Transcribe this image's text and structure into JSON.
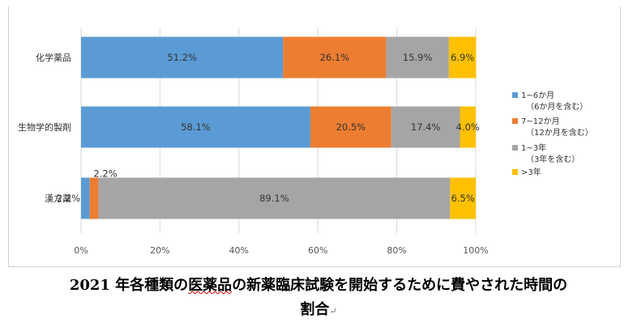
{
  "chart_data": {
    "type": "bar",
    "orientation": "horizontal",
    "stacked": "percent",
    "categories": [
      "化学薬品",
      "生物学的製剤",
      "漢方薬"
    ],
    "series": [
      {
        "name": "1~6か月",
        "name_sub": "（6か月を含む）",
        "color": "#5b9bd5",
        "values": [
          51.2,
          58.1,
          2.2
        ],
        "labels": [
          "51.2%",
          "58.1%",
          "2.2%"
        ]
      },
      {
        "name": "7~12か月",
        "name_sub": "（12か月を含む）",
        "color": "#ed7d31",
        "values": [
          26.1,
          20.5,
          2.2
        ],
        "labels": [
          "26.1%",
          "20.5%",
          "2.2%"
        ]
      },
      {
        "name": "1~3年",
        "name_sub": "（3年を含む）",
        "color": "#a5a5a5",
        "values": [
          15.9,
          17.4,
          89.1
        ],
        "labels": [
          "15.9%",
          "17.4%",
          "89.1%"
        ]
      },
      {
        "name": ">3年",
        "name_sub": "",
        "color": "#ffc000",
        "values": [
          6.9,
          4.0,
          6.5
        ],
        "labels": [
          "6.9%",
          "4.0%",
          "6.5%"
        ]
      }
    ],
    "xlim": [
      0,
      100
    ],
    "xticks": [
      "0%",
      "20%",
      "40%",
      "60%",
      "80%",
      "100%"
    ],
    "grid": true,
    "legend_position": "right"
  },
  "caption": {
    "line1_prefix": "2021 年各種類の",
    "line1_squiggle": "医薬品",
    "line1_suffix": "の新薬臨床試験を開始するために費やされた時間の",
    "line2": "割合",
    "return_mark": "↵"
  }
}
